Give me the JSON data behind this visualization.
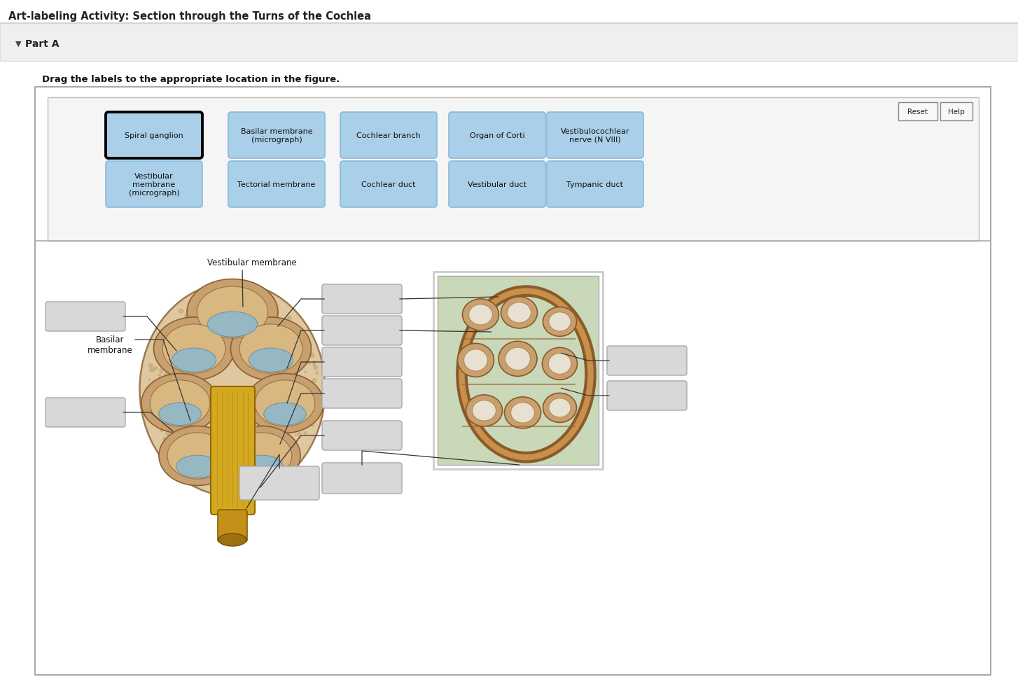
{
  "title": "Art-labeling Activity: Section through the Turns of the Cochlea",
  "part_label": "Part A",
  "instruction": "Drag the labels to the appropriate location in the figure.",
  "bg_page": "#ffffff",
  "bg_partA": "#f0f0f0",
  "main_box_bg": "#ffffff",
  "label_area_bg": "#f5f5f5",
  "label_box_color": "#aacfe8",
  "label_box_border_normal": "#88bbdd",
  "label_box_border_selected": "#000000",
  "gray_box_color": "#d8d8d8",
  "gray_box_border": "#aaaaaa",
  "top_labels_row1": [
    "Spiral ganglion",
    "Basilar membrane\n(micrograph)",
    "Cochlear branch",
    "Organ of Corti",
    "Vestibulocochlear\nnerve (N VIII)"
  ],
  "top_labels_row2": [
    "Vestibular\nmembrane\n(micrograph)",
    "Tectorial membrane",
    "Cochlear duct",
    "Vestibular duct",
    "Tympanic duct"
  ],
  "selected_label_index": 0,
  "vestibular_label": "Vestibular membrane",
  "basilar_label": "Basilar\nmembrane"
}
